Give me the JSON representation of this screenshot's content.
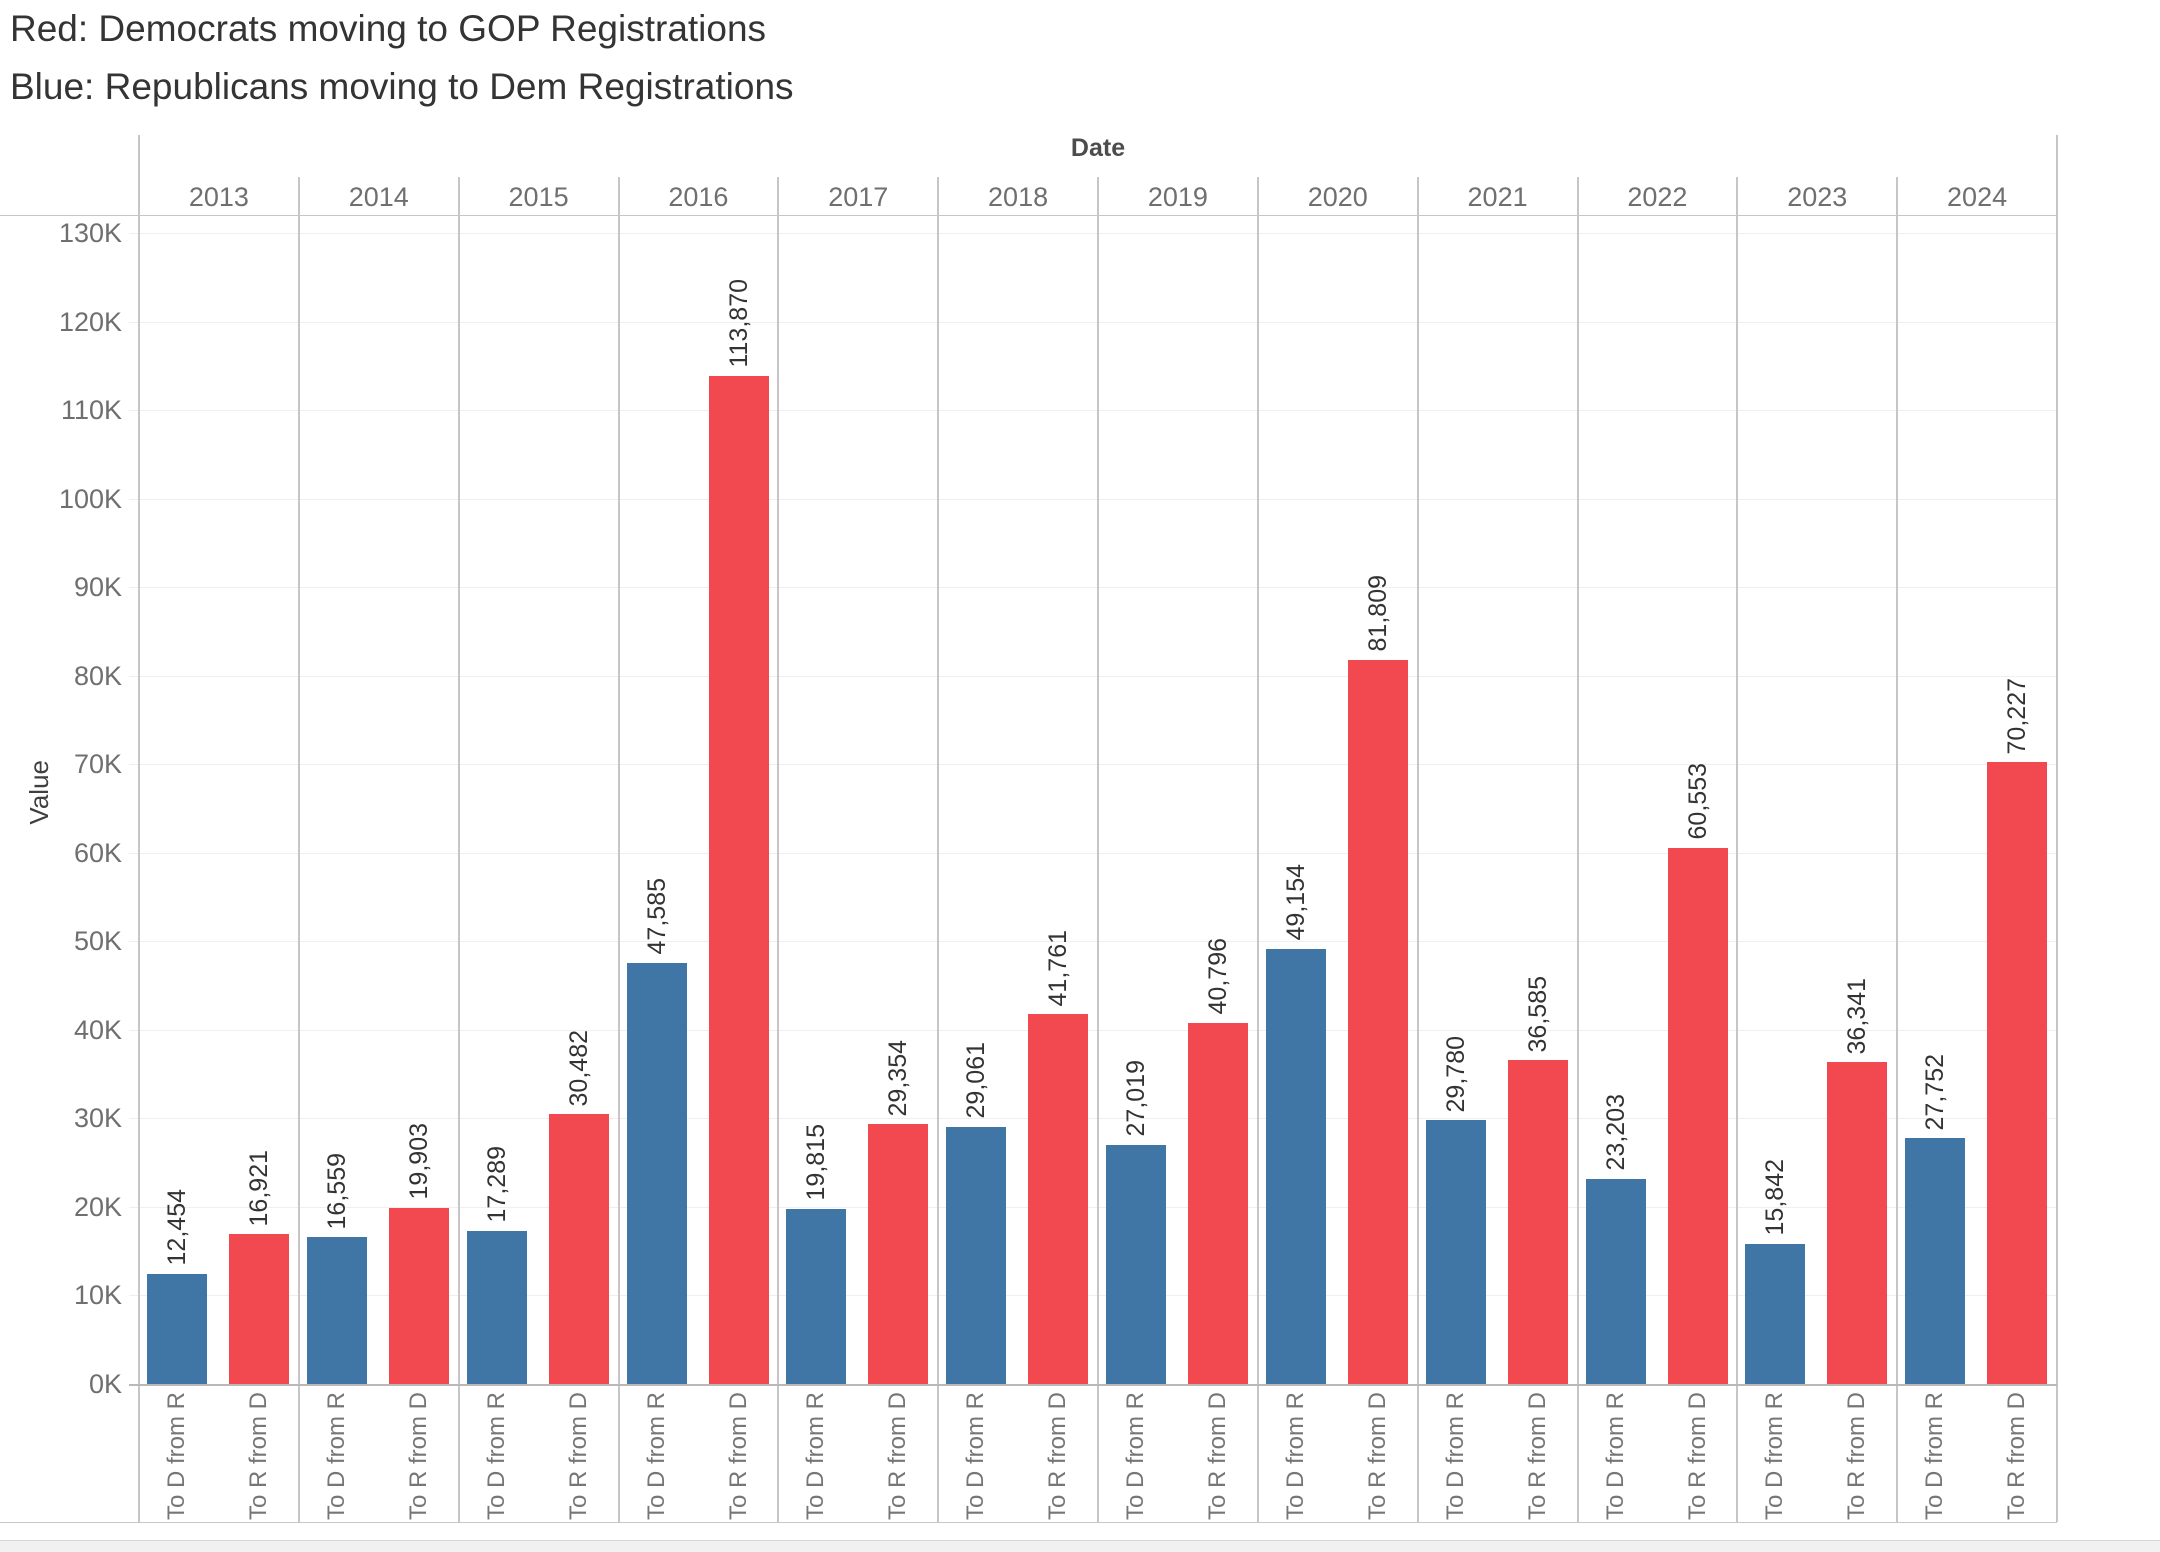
{
  "header": {
    "title_line1": "Red: Democrats moving to GOP Registrations",
    "title_line2": "Blue: Republicans moving to Dem Registrations"
  },
  "chart_data": {
    "type": "bar",
    "title": "Red: Democrats moving to GOP Registrations / Blue: Republicans moving to Dem Registrations",
    "x_axis_title": "Date",
    "y_axis_title": "Value",
    "categories": [
      "2013",
      "2014",
      "2015",
      "2016",
      "2017",
      "2018",
      "2019",
      "2020",
      "2021",
      "2022",
      "2023",
      "2024"
    ],
    "series": [
      {
        "name": "To D from R",
        "color": "#4076A5",
        "values": [
          12454,
          16559,
          17289,
          47585,
          19815,
          29061,
          27019,
          49154,
          29780,
          23203,
          15842,
          27752
        ]
      },
      {
        "name": "To R from D",
        "color": "#F2484F",
        "values": [
          16921,
          19903,
          30482,
          113870,
          29354,
          41761,
          40796,
          81809,
          36585,
          60553,
          36341,
          70227
        ]
      }
    ],
    "value_labels": [
      [
        "12,454",
        "16,559",
        "17,289",
        "47,585",
        "19,815",
        "29,061",
        "27,019",
        "49,154",
        "29,780",
        "23,203",
        "15,842",
        "27,752"
      ],
      [
        "16,921",
        "19,903",
        "30,482",
        "113,870",
        "29,354",
        "41,761",
        "40,796",
        "81,809",
        "36,585",
        "60,553",
        "36,341",
        "70,227"
      ]
    ],
    "y_ticks": [
      "0K",
      "10K",
      "20K",
      "30K",
      "40K",
      "50K",
      "60K",
      "70K",
      "80K",
      "90K",
      "100K",
      "110K",
      "120K",
      "130K"
    ],
    "ylim": [
      0,
      130000
    ],
    "y_tick_step": 10000,
    "legend_position": "none",
    "grid": "horizontal"
  }
}
